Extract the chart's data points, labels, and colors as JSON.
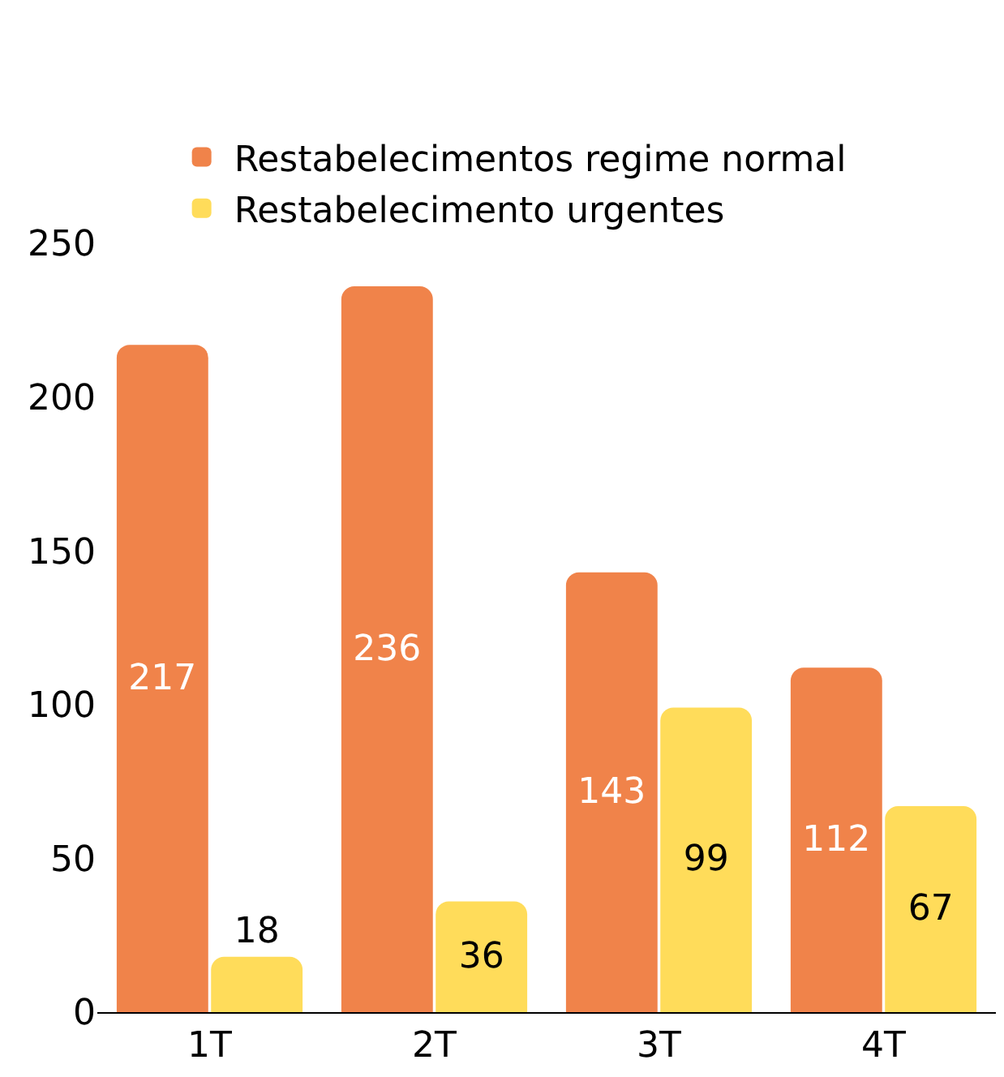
{
  "chart_data": {
    "type": "bar",
    "categories": [
      "1T",
      "2T",
      "3T",
      "4T"
    ],
    "series": [
      {
        "name": "Restabelecimentos regime normal",
        "color": "#f0834a",
        "values": [
          217,
          236,
          143,
          112
        ]
      },
      {
        "name": "Restabelecimento urgentes",
        "color": "#ffdc5a",
        "values": [
          18,
          36,
          99,
          67
        ]
      }
    ],
    "ylim": [
      0,
      250
    ],
    "yticks": [
      0,
      50,
      100,
      150,
      200,
      250
    ],
    "legend": "top",
    "data_labels": true
  }
}
